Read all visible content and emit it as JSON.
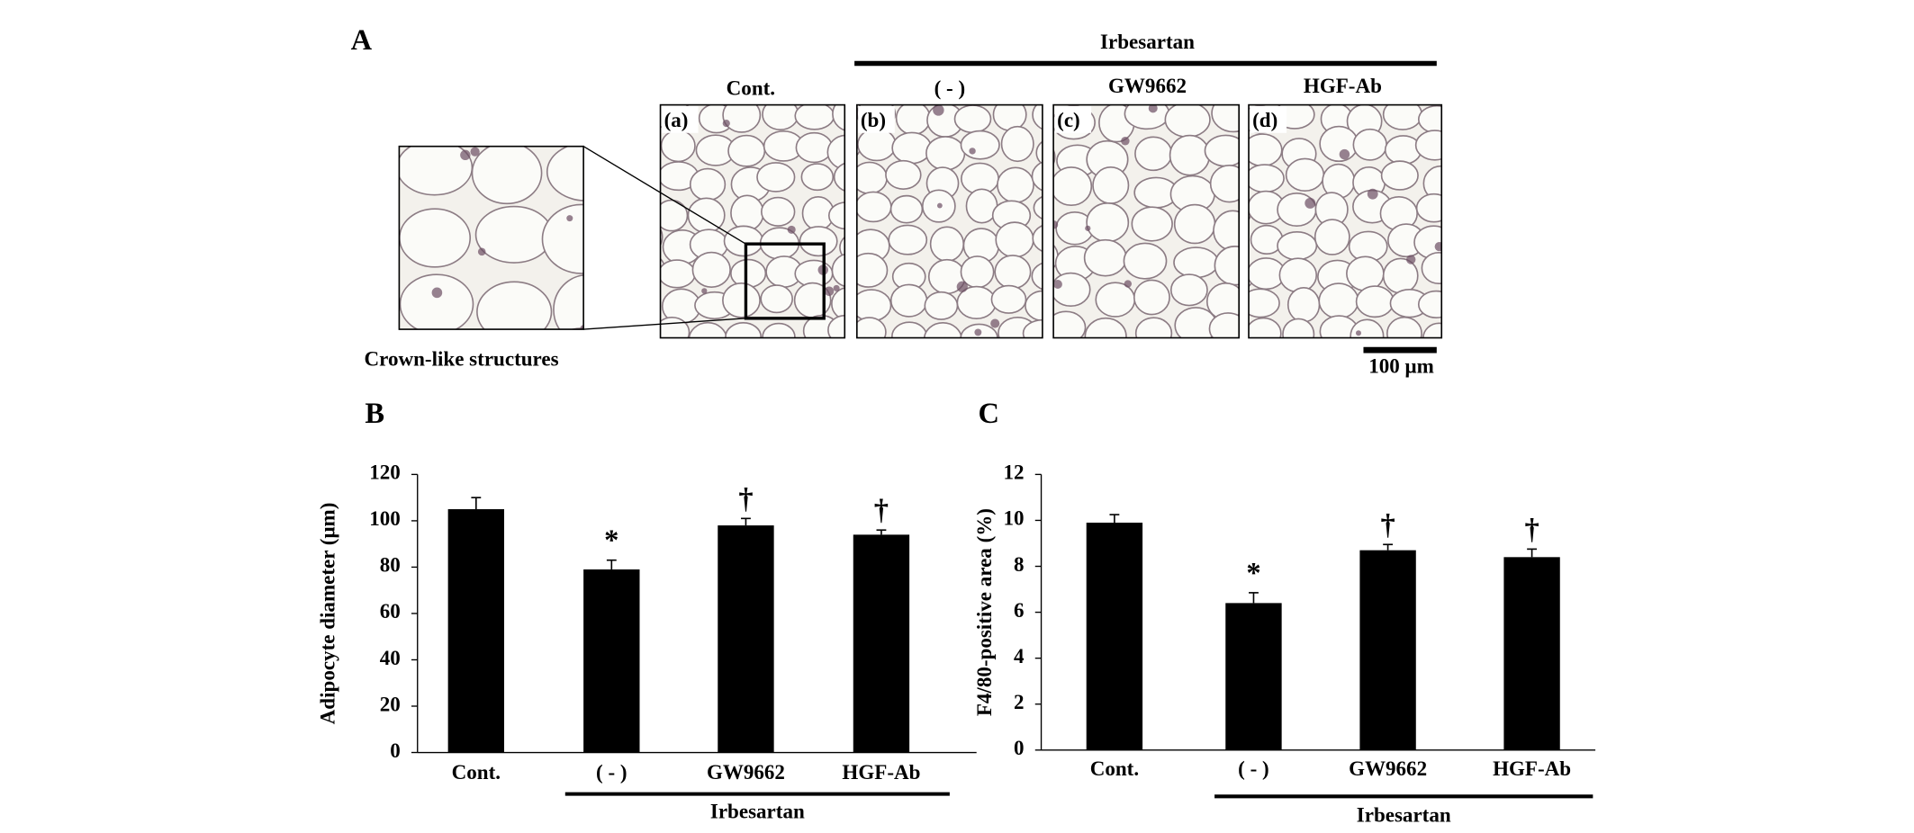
{
  "panel_a": {
    "label": "A",
    "group_label": "Irbesartan",
    "columns": [
      {
        "header": "Cont.",
        "tag": "(a)"
      },
      {
        "header": "( - )",
        "tag": "(b)"
      },
      {
        "header": "GW9662",
        "tag": "(c)"
      },
      {
        "header": "HGF-Ab",
        "tag": "(d)"
      }
    ],
    "inset_caption": "Crown-like structures",
    "scale_bar": "100 μm"
  },
  "chart_data": [
    {
      "type": "bar",
      "panel_label": "B",
      "y_label": "Adipocyte diameter (μm)",
      "categories": [
        "Cont.",
        "( - )",
        "GW9662",
        "HGF-Ab"
      ],
      "values": [
        105,
        79,
        98,
        94
      ],
      "errors": [
        5,
        4,
        3,
        2
      ],
      "annotations": [
        null,
        "*",
        "†",
        "†"
      ],
      "group_label": "Irbesartan",
      "color": "#000000",
      "ylim": [
        0,
        120
      ],
      "yticks": [
        0,
        20,
        40,
        60,
        80,
        100,
        120
      ]
    },
    {
      "type": "bar",
      "panel_label": "C",
      "y_label": "F4/80-positive area (%)",
      "categories": [
        "Cont.",
        "( - )",
        "GW9662",
        "HGF-Ab"
      ],
      "values": [
        9.9,
        6.4,
        8.7,
        8.4
      ],
      "errors": [
        0.35,
        0.45,
        0.25,
        0.35
      ],
      "annotations": [
        null,
        "*",
        "†",
        "†"
      ],
      "group_label": "Irbesartan",
      "color": "#000000",
      "ylim": [
        0,
        12
      ],
      "yticks": [
        0,
        2,
        4,
        6,
        8,
        10,
        12
      ]
    }
  ]
}
